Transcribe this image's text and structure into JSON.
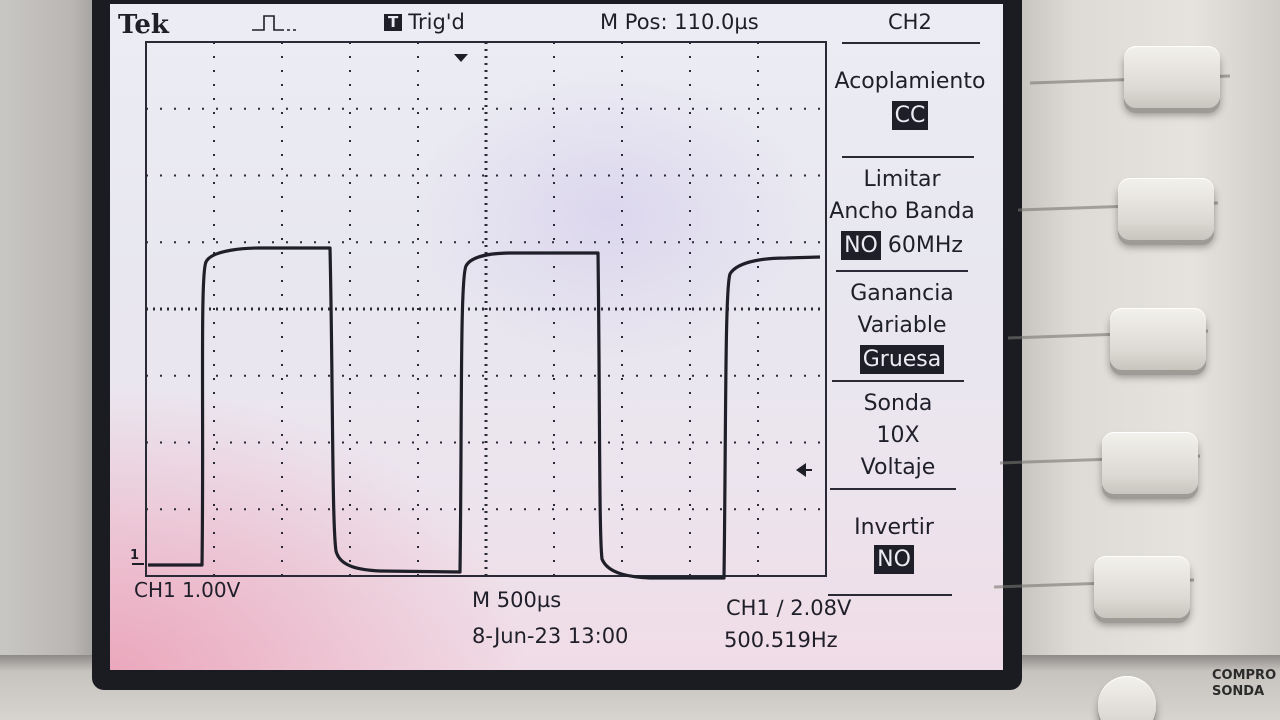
{
  "header": {
    "brand": "Tek",
    "trigger_badge": "T",
    "trigger_status": "Trig'd",
    "m_pos": "M Pos: 110.0µs",
    "channel": "CH2"
  },
  "menu": {
    "coupling_label": "Acoplamiento",
    "coupling_value": "CC",
    "bw_label_1": "Limitar",
    "bw_label_2": "Ancho Banda",
    "bw_value": "NO",
    "bw_freq": "60MHz",
    "gain_label_1": "Ganancia",
    "gain_label_2": "Variable",
    "gain_value": "Gruesa",
    "probe_label": "Sonda",
    "probe_value": "10X",
    "probe_unit": "Voltaje",
    "invert_label": "Invertir",
    "invert_value": "NO"
  },
  "footer": {
    "ch1_scale": "CH1  1.00V",
    "time_scale": "M 500µs",
    "date_time": "8-Jun-23 13:00",
    "trigger_info": "CH1 ∕ 2.08V",
    "frequency": "500.519Hz"
  },
  "markers": {
    "ch1_ground": "1"
  },
  "panel": {
    "compro_line1": "COMPRO",
    "compro_line2": "SONDA"
  },
  "colors": {
    "trace": "#1f1f2a",
    "screen": "#ecedf4"
  }
}
